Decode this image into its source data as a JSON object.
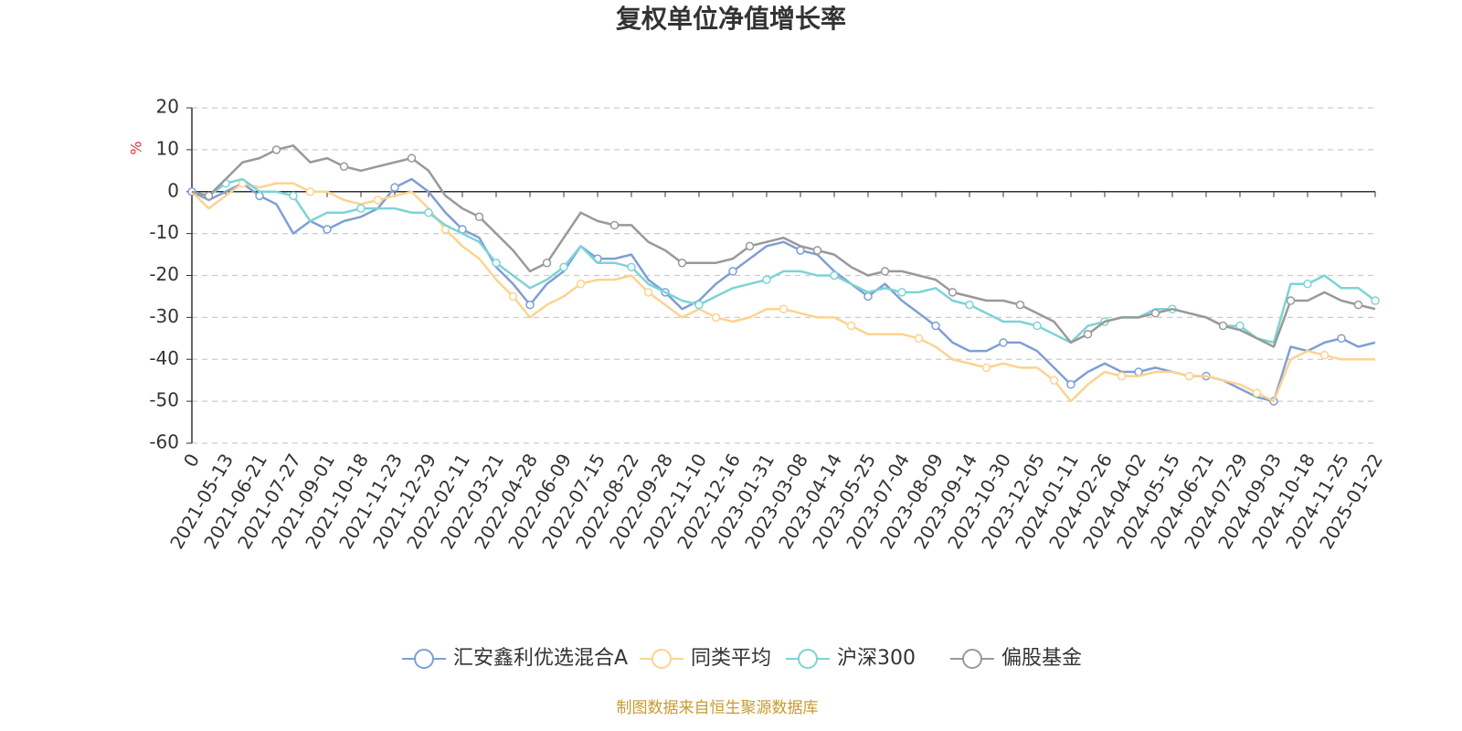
{
  "chart_data": {
    "type": "line",
    "title": "复权单位净值增长率",
    "y_label": "%",
    "note": "制图数据来自恒生聚源数据库",
    "categories": [
      "0",
      null,
      "2021-05-13",
      null,
      "2021-06-21",
      null,
      "2021-07-27",
      null,
      "2021-09-01",
      null,
      "2021-10-18",
      null,
      "2021-11-23",
      null,
      "2021-12-29",
      null,
      "2022-02-11",
      null,
      "2022-03-21",
      null,
      "2022-04-28",
      null,
      "2022-06-09",
      null,
      "2022-07-15",
      null,
      "2022-08-22",
      null,
      "2022-09-28",
      null,
      "2022-11-10",
      null,
      "2022-12-16",
      null,
      "2023-01-31",
      null,
      "2023-03-08",
      null,
      "2023-04-14",
      null,
      "2023-05-25",
      null,
      "2023-07-04",
      null,
      "2023-08-09",
      null,
      "2023-09-14",
      null,
      "2023-10-30",
      null,
      "2023-12-05",
      null,
      "2024-01-11",
      null,
      "2024-02-26",
      null,
      "2024-04-02",
      null,
      "2024-05-15",
      null,
      "2024-06-21",
      null,
      "2024-07-29",
      null,
      "2024-09-03",
      null,
      "2024-10-18",
      null,
      "2024-11-25",
      null,
      "2025-01-22"
    ],
    "series": [
      {
        "name": "汇安鑫利优选混合A",
        "color": "#7f9fd4",
        "values": [
          0,
          -2,
          0,
          2,
          -1,
          -3,
          -10,
          -7,
          -9,
          -7,
          -6,
          -4,
          1,
          3,
          0,
          -5,
          -9,
          -11,
          -18,
          -22,
          -27,
          -22,
          -19,
          -13,
          -16,
          -16,
          -15,
          -21,
          -24,
          -28,
          -26,
          -22,
          -19,
          -16,
          -13,
          -12,
          -14,
          -15,
          -19,
          -22,
          -25,
          -22,
          -26,
          -29,
          -32,
          -36,
          -38,
          -38,
          -36,
          -36,
          -38,
          -42,
          -46,
          -43,
          -41,
          -43,
          -43,
          -42,
          -43,
          -44,
          -44,
          -45,
          -47,
          -49,
          -50,
          -37,
          -38,
          -36,
          -35,
          -37,
          -36
        ]
      },
      {
        "name": "同类平均",
        "color": "#fcd38f",
        "values": [
          0,
          -4,
          -1,
          2,
          1,
          2,
          2,
          0,
          0,
          -2,
          -3,
          -2,
          -1,
          0,
          -4,
          -9,
          -13,
          -16,
          -21,
          -25,
          -30,
          -27,
          -25,
          -22,
          -21,
          -21,
          -20,
          -24,
          -27,
          -30,
          -28,
          -30,
          -31,
          -30,
          -28,
          -28,
          -29,
          -30,
          -30,
          -32,
          -34,
          -34,
          -34,
          -35,
          -37,
          -40,
          -41,
          -42,
          -41,
          -42,
          -42,
          -45,
          -50,
          -46,
          -43,
          -44,
          -44,
          -43,
          -43,
          -44,
          -44,
          -45,
          -46,
          -48,
          -50,
          -40,
          -38,
          -39,
          -40,
          -40,
          -40
        ]
      },
      {
        "name": "沪深300",
        "color": "#7dd3d6",
        "values": [
          0,
          -1,
          2,
          3,
          0,
          0,
          -1,
          -7,
          -5,
          -5,
          -4,
          -4,
          -4,
          -5,
          -5,
          -8,
          -10,
          -12,
          -17,
          -20,
          -23,
          -21,
          -18,
          -13,
          -17,
          -17,
          -18,
          -22,
          -24,
          -26,
          -27,
          -25,
          -23,
          -22,
          -21,
          -19,
          -19,
          -20,
          -20,
          -22,
          -24,
          -23,
          -24,
          -24,
          -23,
          -26,
          -27,
          -29,
          -31,
          -31,
          -32,
          -34,
          -36,
          -32,
          -31,
          -30,
          -30,
          -28,
          -28,
          -29,
          -30,
          -32,
          -32,
          -35,
          -36,
          -22,
          -22,
          -20,
          -23,
          -23,
          -26
        ]
      },
      {
        "name": "偏股基金",
        "color": "#999999",
        "values": [
          0,
          -1,
          3,
          7,
          8,
          10,
          11,
          7,
          8,
          6,
          5,
          6,
          7,
          8,
          5,
          -1,
          -4,
          -6,
          -10,
          -14,
          -19,
          -17,
          -11,
          -5,
          -7,
          -8,
          -8,
          -12,
          -14,
          -17,
          -17,
          -17,
          -16,
          -13,
          -12,
          -11,
          -13,
          -14,
          -15,
          -18,
          -20,
          -19,
          -19,
          -20,
          -21,
          -24,
          -25,
          -26,
          -26,
          -27,
          -29,
          -31,
          -36,
          -34,
          -31,
          -30,
          -30,
          -29,
          -28,
          -29,
          -30,
          -32,
          -33,
          -35,
          -37,
          -26,
          -26,
          -24,
          -26,
          -27,
          -28
        ]
      }
    ],
    "ylim": [
      -60,
      20
    ],
    "yticks": [
      -60,
      -50,
      -40,
      -30,
      -20,
      -10,
      0,
      10,
      20
    ],
    "grid": true,
    "legend": "bottom"
  }
}
